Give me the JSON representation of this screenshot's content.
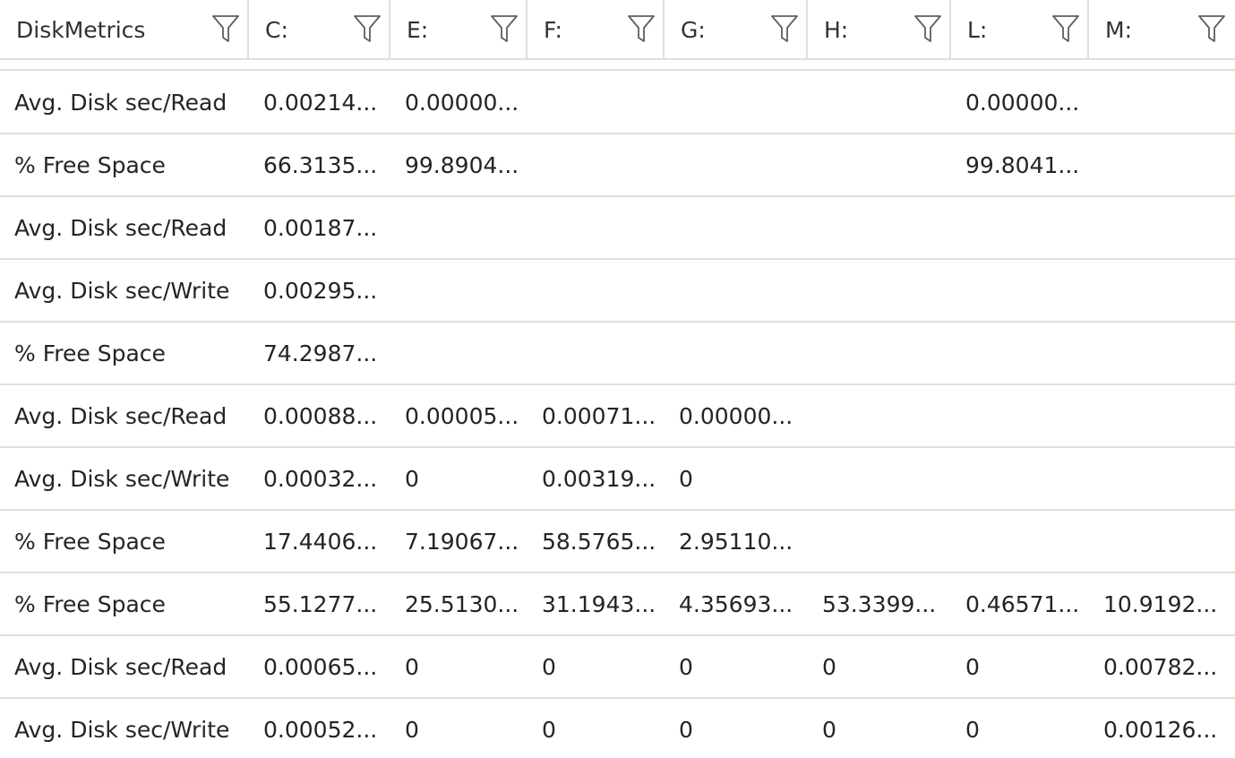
{
  "table": {
    "columns": [
      {
        "label": "DiskMetrics",
        "filter_icon": "filter-icon"
      },
      {
        "label": "C:",
        "filter_icon": "filter-icon"
      },
      {
        "label": "E:",
        "filter_icon": "filter-icon"
      },
      {
        "label": "F:",
        "filter_icon": "filter-icon"
      },
      {
        "label": "G:",
        "filter_icon": "filter-icon"
      },
      {
        "label": "H:",
        "filter_icon": "filter-icon"
      },
      {
        "label": "L:",
        "filter_icon": "filter-icon"
      },
      {
        "label": "M:",
        "filter_icon": "filter-icon"
      }
    ],
    "rows": [
      [
        "Avg. Disk sec/Read",
        "0.00214...",
        "0.00000...",
        "",
        "",
        "",
        "0.00000...",
        ""
      ],
      [
        "% Free Space",
        "66.3135...",
        "99.8904...",
        "",
        "",
        "",
        "99.8041...",
        ""
      ],
      [
        "Avg. Disk sec/Read",
        "0.00187...",
        "",
        "",
        "",
        "",
        "",
        ""
      ],
      [
        "Avg. Disk sec/Write",
        "0.00295...",
        "",
        "",
        "",
        "",
        "",
        ""
      ],
      [
        "% Free Space",
        "74.2987...",
        "",
        "",
        "",
        "",
        "",
        ""
      ],
      [
        "Avg. Disk sec/Read",
        "0.00088...",
        "0.00005...",
        "0.00071...",
        "0.00000...",
        "",
        "",
        ""
      ],
      [
        "Avg. Disk sec/Write",
        "0.00032...",
        "0",
        "0.00319...",
        "0",
        "",
        "",
        ""
      ],
      [
        "% Free Space",
        "17.4406...",
        "7.19067...",
        "58.5765...",
        "2.95110...",
        "",
        "",
        ""
      ],
      [
        "% Free Space",
        "55.1277...",
        "25.5130...",
        "31.1943...",
        "4.35693...",
        "53.3399...",
        "0.46571...",
        "10.9192..."
      ],
      [
        "Avg. Disk sec/Read",
        "0.00065...",
        "0",
        "0",
        "0",
        "0",
        "0",
        "0.00782..."
      ],
      [
        "Avg. Disk sec/Write",
        "0.00052...",
        "0",
        "0",
        "0",
        "0",
        "0",
        "0.00126..."
      ]
    ]
  },
  "colors": {
    "text": "#252423",
    "grid_line": "#e1dfdd",
    "header_text": "#323130",
    "icon": "#605e5c"
  }
}
